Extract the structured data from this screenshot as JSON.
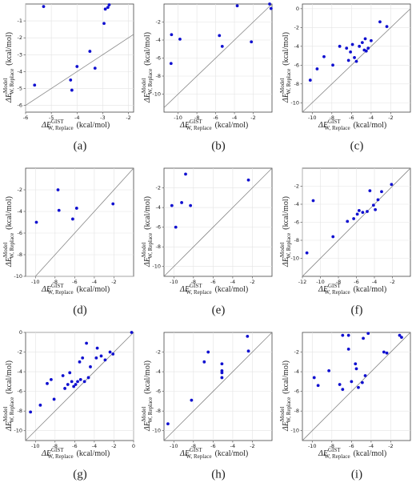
{
  "chart_data": [
    {
      "type": "scatter",
      "caption": "(a)",
      "color": "#1010d0",
      "grid": true,
      "diagonal": true,
      "xlabel": {
        "text": "ΔE",
        "sup": "GIST",
        "sub": "W, Replace",
        "unit": "(kcal/mol)"
      },
      "ylabel": {
        "text": "ΔE",
        "sup": "Model",
        "sub": "W, Replace",
        "unit": "(kcal/mol)"
      },
      "xlim": [
        -6,
        -1.8
      ],
      "ylim": [
        -6.4,
        0
      ],
      "xticks": [
        -6,
        -5,
        -4,
        -3,
        -2
      ],
      "yticks": [
        -6,
        -5,
        -4,
        -3,
        -2,
        -1
      ],
      "x": [
        -5.3,
        -2.9,
        -2.8,
        -2.75,
        -2.95,
        -3.5,
        -3.3,
        -4.0,
        -4.25,
        -5.65,
        -4.2
      ],
      "values": [
        -0.15,
        -0.3,
        -0.2,
        -0.05,
        -1.15,
        -2.8,
        -3.8,
        -3.7,
        -4.5,
        -4.8,
        -5.1
      ]
    },
    {
      "type": "scatter",
      "caption": "(b)",
      "color": "#1010d0",
      "grid": true,
      "diagonal": true,
      "xlabel": {
        "text": "ΔE",
        "sup": "GIST",
        "sub": "W, Replace",
        "unit": "(kcal/mol)"
      },
      "ylabel": {
        "text": "ΔE",
        "sup": "Model",
        "sub": "W, Replace",
        "unit": "(kcal/mol)"
      },
      "xlim": [
        -11.5,
        0
      ],
      "ylim": [
        -12,
        0
      ],
      "xticks": [
        -10,
        -8,
        -6,
        -4,
        -2
      ],
      "yticks": [
        -10,
        -8,
        -6,
        -4,
        -2
      ],
      "x": [
        -10.7,
        -9.8,
        -10.75,
        -5.6,
        -5.3,
        -3.7,
        -2.2,
        -0.25,
        -0.1
      ],
      "values": [
        -3.4,
        -3.9,
        -6.6,
        -3.5,
        -4.7,
        -0.2,
        -4.2,
        0,
        -0.5
      ]
    },
    {
      "type": "scatter",
      "caption": "(c)",
      "color": "#1010d0",
      "grid": true,
      "diagonal": true,
      "xlabel": {
        "text": "ΔE",
        "sup": "GIST",
        "sub": "W, Replace",
        "unit": "(kcal/mol)"
      },
      "ylabel": {
        "text": "ΔE",
        "sup": "Model",
        "sub": "W, Replace",
        "unit": "(kcal/mol)"
      },
      "xlim": [
        -11,
        0
      ],
      "ylim": [
        -11,
        0.5
      ],
      "xticks": [
        -10,
        -8,
        -6,
        -4,
        -2
      ],
      "yticks": [
        -10,
        -8,
        -6,
        -4,
        -2,
        0
      ],
      "x": [
        -10.2,
        -9.5,
        -8.8,
        -7.9,
        -7.2,
        -6.5,
        -6.3,
        -6.1,
        -5.9,
        -5.7,
        -5.5,
        -5.2,
        -4.9,
        -4.7,
        -4.6,
        -4.5,
        -4.3,
        -4.0,
        -3.1,
        -2.4
      ],
      "values": [
        -7.6,
        -6.4,
        -5.1,
        -6.0,
        -4.0,
        -4.2,
        -5.5,
        -4.6,
        -3.8,
        -5.2,
        -5.6,
        -4.0,
        -3.6,
        -4.4,
        -3.2,
        -4.5,
        -4.2,
        -3.4,
        -1.4,
        -1.9
      ]
    },
    {
      "type": "scatter",
      "caption": "(d)",
      "color": "#1010d0",
      "grid": true,
      "diagonal": true,
      "xlabel": {
        "text": "ΔE",
        "sup": "GIST",
        "sub": "W, Replace",
        "unit": "(kcal/mol)"
      },
      "ylabel": {
        "text": "ΔE",
        "sup": "Model",
        "sub": "W, Replace",
        "unit": "(kcal/mol)"
      },
      "xlim": [
        -11,
        0
      ],
      "ylim": [
        -10,
        0
      ],
      "xticks": [
        -10,
        -8,
        -6,
        -4,
        -2
      ],
      "yticks": [
        -10,
        -8,
        -6,
        -4,
        -2
      ],
      "x": [
        -9.9,
        -7.7,
        -7.6,
        -6.2,
        -5.8,
        -2.1
      ],
      "values": [
        -5.0,
        -2.0,
        -3.9,
        -4.7,
        -3.7,
        -3.3
      ]
    },
    {
      "type": "scatter",
      "caption": "(e)",
      "color": "#1010d0",
      "grid": true,
      "diagonal": true,
      "xlabel": {
        "text": "ΔE",
        "sup": "GIST",
        "sub": "W, Replace",
        "unit": "(kcal/mol)"
      },
      "ylabel": {
        "text": "ΔE",
        "sup": "Model",
        "sub": "W, Replace",
        "unit": "(kcal/mol)"
      },
      "xlim": [
        -11,
        0
      ],
      "ylim": [
        -11,
        0
      ],
      "xticks": [
        -10,
        -8,
        -6,
        -4,
        -2
      ],
      "yticks": [
        -10,
        -8,
        -6,
        -4,
        -2
      ],
      "x": [
        -10.2,
        -9.8,
        -9.2,
        -8.8,
        -8.3,
        -2.4
      ],
      "values": [
        -3.8,
        -6.0,
        -3.5,
        -0.6,
        -3.8,
        -1.2
      ]
    },
    {
      "type": "scatter",
      "caption": "(f)",
      "color": "#1010d0",
      "grid": true,
      "diagonal": true,
      "xlabel": {
        "text": "ΔE",
        "sup": "GIST",
        "sub": "W, Replace",
        "unit": "(kcal/mol)"
      },
      "ylabel": {
        "text": "ΔE",
        "sup": "Model",
        "sub": "W, Replace",
        "unit": "(kcal/mol)"
      },
      "xlim": [
        -12,
        0
      ],
      "ylim": [
        -12,
        0
      ],
      "xticks": [
        -12,
        -10,
        -8,
        -6,
        -4,
        -2
      ],
      "yticks": [
        -10,
        -8,
        -6,
        -4,
        -2
      ],
      "x": [
        -11.5,
        -10.8,
        -8.6,
        -7.0,
        -6.3,
        -5.9,
        -5.7,
        -5.3,
        -4.8,
        -4.5,
        -4.1,
        -3.9,
        -3.6,
        -3.2,
        -2.1
      ],
      "values": [
        -9.4,
        -3.6,
        -7.6,
        -5.9,
        -5.6,
        -5.1,
        -4.7,
        -4.9,
        -4.8,
        -2.5,
        -4.1,
        -4.6,
        -3.5,
        -2.6,
        -1.8
      ]
    },
    {
      "type": "scatter",
      "caption": "(g)",
      "color": "#1010d0",
      "grid": true,
      "diagonal": true,
      "xlabel": {
        "text": "ΔE",
        "sup": "GIST",
        "sub": "W, Replace",
        "unit": "(kcal/mol)"
      },
      "ylabel": {
        "text": "ΔE",
        "sup": "Model",
        "sub": "W, Replace",
        "unit": "(kcal/mol)"
      },
      "xlim": [
        -11,
        0
      ],
      "ylim": [
        -11,
        0
      ],
      "xticks": [
        -10,
        -8,
        -6,
        -4,
        -2,
        0
      ],
      "yticks": [
        -10,
        -8,
        -6,
        -4,
        -2,
        0
      ],
      "x": [
        -10.5,
        -9.5,
        -8.8,
        -8.4,
        -8.1,
        -7.2,
        -7.0,
        -6.7,
        -6.5,
        -6.3,
        -6.1,
        -5.9,
        -5.7,
        -5.5,
        -5.4,
        -5.2,
        -5.0,
        -4.8,
        -4.6,
        -4.4,
        -3.8,
        -3.7,
        -3.3,
        -2.9,
        -2.4,
        -2.1,
        -0.2
      ],
      "values": [
        -8.1,
        -7.4,
        -5.2,
        -4.8,
        -6.8,
        -4.4,
        -5.7,
        -5.3,
        -4.1,
        -5.0,
        -5.5,
        -5.3,
        -5.0,
        -3.0,
        -4.8,
        -2.6,
        -5.0,
        -1.1,
        -4.6,
        -3.5,
        -2.6,
        -1.6,
        -2.4,
        -2.8,
        -2.0,
        -2.2,
        0.0
      ]
    },
    {
      "type": "scatter",
      "caption": "(h)",
      "color": "#1010d0",
      "grid": true,
      "diagonal": true,
      "xlabel": {
        "text": "ΔE",
        "sup": "GIST",
        "sub": "W, Replace",
        "unit": "(kcal/mol)"
      },
      "ylabel": {
        "text": "ΔE",
        "sup": "Model",
        "sub": "W, Replace",
        "unit": "(kcal/mol)"
      },
      "xlim": [
        -11,
        0
      ],
      "ylim": [
        -11,
        0
      ],
      "xticks": [
        -10,
        -8,
        -6,
        -4,
        -2
      ],
      "yticks": [
        -10,
        -8,
        -6,
        -4,
        -2
      ],
      "x": [
        -10.6,
        -8.2,
        -6.9,
        -6.5,
        -5.1,
        -5.1,
        -5.1,
        -5.1,
        -2.5,
        -2.4
      ],
      "values": [
        -9.3,
        -6.9,
        -3.0,
        -2.0,
        -3.2,
        -3.9,
        -4.1,
        -4.6,
        -0.4,
        -1.9
      ]
    },
    {
      "type": "scatter",
      "caption": "(i)",
      "color": "#1010d0",
      "grid": true,
      "diagonal": true,
      "xlabel": {
        "text": "ΔE",
        "sup": "GIST",
        "sub": "W, Replace",
        "unit": "(kcal/mol)"
      },
      "ylabel": {
        "text": "ΔE",
        "sup": "Model",
        "sub": "W, Replace",
        "unit": "(kcal/mol)"
      },
      "xlim": [
        -11,
        0
      ],
      "ylim": [
        -11,
        0
      ],
      "xticks": [
        -10,
        -8,
        -6,
        -4,
        -2
      ],
      "yticks": [
        -10,
        -8,
        -6,
        -4,
        -2
      ],
      "x": [
        -9.8,
        -9.4,
        -8.3,
        -7.2,
        -6.9,
        -6.9,
        -6.3,
        -6.3,
        -6.0,
        -5.6,
        -5.5,
        -5.3,
        -4.9,
        -4.8,
        -4.6,
        -4.3,
        -2.7,
        -2.4,
        -1.1,
        -0.9
      ],
      "values": [
        -4.6,
        -5.4,
        -3.9,
        -5.3,
        -0.3,
        -5.8,
        -0.3,
        -1.7,
        -5.0,
        -3.2,
        -3.7,
        -5.6,
        -5.1,
        -0.6,
        -4.4,
        -0.1,
        -2.0,
        -2.1,
        -0.3,
        -0.5
      ]
    }
  ]
}
